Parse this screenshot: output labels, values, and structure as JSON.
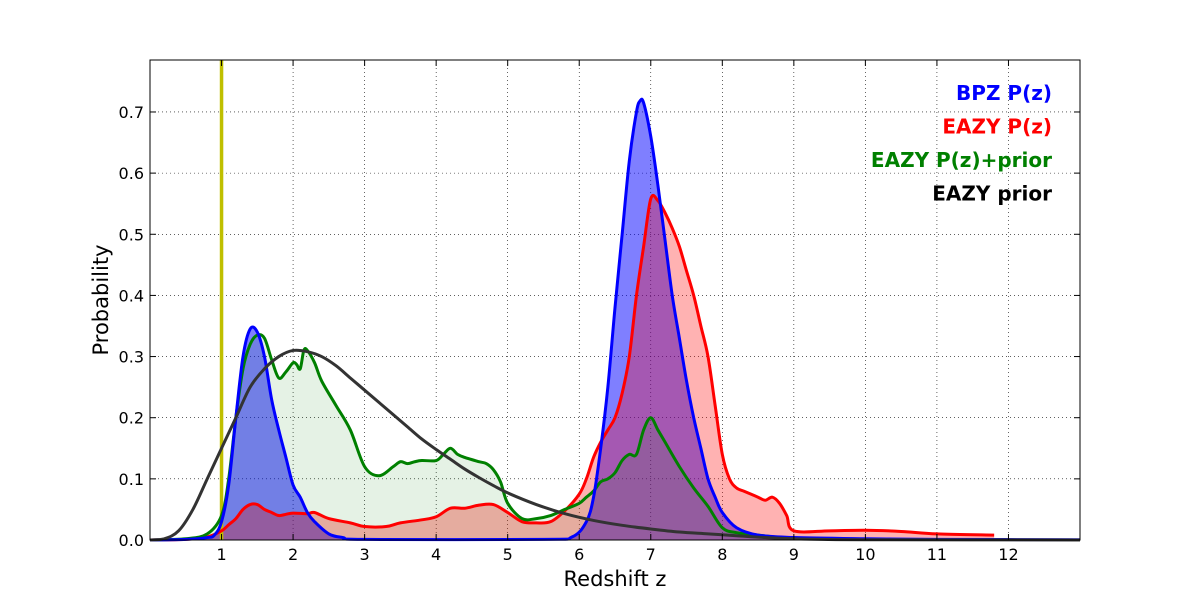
{
  "chart_data": {
    "type": "area",
    "title": "",
    "xlabel": "Redshift z",
    "ylabel": "Probability",
    "xlim": [
      0,
      13
    ],
    "ylim": [
      0,
      0.785
    ],
    "x_ticks": [
      "1",
      "2",
      "3",
      "4",
      "5",
      "6",
      "7",
      "8",
      "9",
      "10",
      "11",
      "12"
    ],
    "y_ticks": [
      "0.0",
      "0.1",
      "0.2",
      "0.3",
      "0.4",
      "0.5",
      "0.6",
      "0.7"
    ],
    "grid": true,
    "legend_position": "top-right",
    "reference_line": {
      "x": 1.0,
      "color": "#bfbf00"
    },
    "series": [
      {
        "name": "BPZ P(z)",
        "color": "#0000ff",
        "fill": "#0000ff",
        "fill_opacity": 0.5,
        "points": [
          [
            0,
            0
          ],
          [
            0.5,
            0.001
          ],
          [
            0.8,
            0.004
          ],
          [
            0.9,
            0.008
          ],
          [
            1.0,
            0.03
          ],
          [
            1.1,
            0.09
          ],
          [
            1.2,
            0.2
          ],
          [
            1.3,
            0.3
          ],
          [
            1.4,
            0.345
          ],
          [
            1.5,
            0.34
          ],
          [
            1.6,
            0.3
          ],
          [
            1.7,
            0.23
          ],
          [
            1.8,
            0.18
          ],
          [
            1.9,
            0.135
          ],
          [
            2.0,
            0.09
          ],
          [
            2.1,
            0.07
          ],
          [
            2.2,
            0.045
          ],
          [
            2.3,
            0.03
          ],
          [
            2.5,
            0.01
          ],
          [
            2.7,
            0.004
          ],
          [
            3.0,
            0.001
          ],
          [
            5.5,
            0.001
          ],
          [
            5.9,
            0.005
          ],
          [
            6.1,
            0.03
          ],
          [
            6.2,
            0.07
          ],
          [
            6.3,
            0.15
          ],
          [
            6.4,
            0.25
          ],
          [
            6.5,
            0.38
          ],
          [
            6.6,
            0.5
          ],
          [
            6.7,
            0.62
          ],
          [
            6.8,
            0.7
          ],
          [
            6.85,
            0.718
          ],
          [
            6.9,
            0.715
          ],
          [
            7.0,
            0.66
          ],
          [
            7.1,
            0.58
          ],
          [
            7.2,
            0.49
          ],
          [
            7.3,
            0.4
          ],
          [
            7.4,
            0.33
          ],
          [
            7.5,
            0.26
          ],
          [
            7.6,
            0.2
          ],
          [
            7.7,
            0.15
          ],
          [
            7.8,
            0.1
          ],
          [
            7.9,
            0.07
          ],
          [
            8.0,
            0.045
          ],
          [
            8.2,
            0.02
          ],
          [
            8.5,
            0.008
          ],
          [
            9.0,
            0.004
          ],
          [
            10,
            0.002
          ],
          [
            11,
            0.001
          ],
          [
            13,
            0.0005
          ]
        ]
      },
      {
        "name": "EAZY P(z)",
        "color": "#ff0000",
        "fill": "#ff0000",
        "fill_opacity": 0.3,
        "points": [
          [
            0,
            0
          ],
          [
            0.5,
            0.001
          ],
          [
            0.8,
            0.005
          ],
          [
            1.0,
            0.015
          ],
          [
            1.1,
            0.025
          ],
          [
            1.2,
            0.035
          ],
          [
            1.3,
            0.05
          ],
          [
            1.4,
            0.058
          ],
          [
            1.5,
            0.058
          ],
          [
            1.6,
            0.05
          ],
          [
            1.7,
            0.045
          ],
          [
            1.8,
            0.04
          ],
          [
            1.9,
            0.042
          ],
          [
            2.0,
            0.044
          ],
          [
            2.2,
            0.043
          ],
          [
            2.3,
            0.045
          ],
          [
            2.5,
            0.035
          ],
          [
            2.8,
            0.028
          ],
          [
            3.0,
            0.022
          ],
          [
            3.3,
            0.022
          ],
          [
            3.5,
            0.028
          ],
          [
            3.8,
            0.033
          ],
          [
            4.0,
            0.038
          ],
          [
            4.2,
            0.052
          ],
          [
            4.4,
            0.052
          ],
          [
            4.6,
            0.057
          ],
          [
            4.8,
            0.058
          ],
          [
            5.0,
            0.045
          ],
          [
            5.2,
            0.03
          ],
          [
            5.4,
            0.028
          ],
          [
            5.6,
            0.03
          ],
          [
            5.8,
            0.048
          ],
          [
            6.0,
            0.075
          ],
          [
            6.1,
            0.1
          ],
          [
            6.2,
            0.135
          ],
          [
            6.3,
            0.16
          ],
          [
            6.4,
            0.18
          ],
          [
            6.5,
            0.2
          ],
          [
            6.6,
            0.24
          ],
          [
            6.7,
            0.3
          ],
          [
            6.8,
            0.4
          ],
          [
            6.9,
            0.48
          ],
          [
            7.0,
            0.558
          ],
          [
            7.1,
            0.555
          ],
          [
            7.2,
            0.535
          ],
          [
            7.3,
            0.51
          ],
          [
            7.4,
            0.48
          ],
          [
            7.5,
            0.44
          ],
          [
            7.6,
            0.4
          ],
          [
            7.7,
            0.35
          ],
          [
            7.8,
            0.3
          ],
          [
            7.9,
            0.22
          ],
          [
            8.0,
            0.14
          ],
          [
            8.1,
            0.1
          ],
          [
            8.2,
            0.085
          ],
          [
            8.3,
            0.08
          ],
          [
            8.4,
            0.075
          ],
          [
            8.5,
            0.07
          ],
          [
            8.6,
            0.065
          ],
          [
            8.7,
            0.07
          ],
          [
            8.8,
            0.06
          ],
          [
            8.9,
            0.04
          ],
          [
            9.0,
            0.015
          ],
          [
            9.5,
            0.015
          ],
          [
            10.0,
            0.016
          ],
          [
            10.5,
            0.014
          ],
          [
            11.0,
            0.01
          ],
          [
            11.8,
            0.008
          ]
        ]
      },
      {
        "name": "EAZY P(z)+prior",
        "color": "#008000",
        "fill": "#008000",
        "fill_opacity": 0.1,
        "points": [
          [
            0,
            0
          ],
          [
            0.5,
            0.002
          ],
          [
            0.8,
            0.01
          ],
          [
            1.0,
            0.04
          ],
          [
            1.1,
            0.1
          ],
          [
            1.2,
            0.2
          ],
          [
            1.3,
            0.28
          ],
          [
            1.4,
            0.32
          ],
          [
            1.5,
            0.335
          ],
          [
            1.6,
            0.33
          ],
          [
            1.7,
            0.295
          ],
          [
            1.8,
            0.265
          ],
          [
            1.9,
            0.275
          ],
          [
            2.0,
            0.29
          ],
          [
            2.05,
            0.287
          ],
          [
            2.1,
            0.28
          ],
          [
            2.15,
            0.31
          ],
          [
            2.2,
            0.31
          ],
          [
            2.3,
            0.29
          ],
          [
            2.4,
            0.26
          ],
          [
            2.6,
            0.22
          ],
          [
            2.8,
            0.18
          ],
          [
            3.0,
            0.12
          ],
          [
            3.2,
            0.105
          ],
          [
            3.4,
            0.12
          ],
          [
            3.5,
            0.128
          ],
          [
            3.6,
            0.125
          ],
          [
            3.7,
            0.128
          ],
          [
            3.8,
            0.13
          ],
          [
            4.0,
            0.13
          ],
          [
            4.1,
            0.14
          ],
          [
            4.2,
            0.15
          ],
          [
            4.3,
            0.14
          ],
          [
            4.4,
            0.135
          ],
          [
            4.6,
            0.128
          ],
          [
            4.7,
            0.125
          ],
          [
            4.8,
            0.115
          ],
          [
            4.9,
            0.095
          ],
          [
            5.0,
            0.06
          ],
          [
            5.2,
            0.035
          ],
          [
            5.4,
            0.035
          ],
          [
            5.6,
            0.04
          ],
          [
            5.8,
            0.05
          ],
          [
            6.0,
            0.06
          ],
          [
            6.1,
            0.07
          ],
          [
            6.2,
            0.08
          ],
          [
            6.3,
            0.095
          ],
          [
            6.4,
            0.1
          ],
          [
            6.5,
            0.11
          ],
          [
            6.6,
            0.13
          ],
          [
            6.7,
            0.14
          ],
          [
            6.8,
            0.14
          ],
          [
            6.9,
            0.18
          ],
          [
            7.0,
            0.2
          ],
          [
            7.1,
            0.18
          ],
          [
            7.2,
            0.16
          ],
          [
            7.4,
            0.12
          ],
          [
            7.6,
            0.085
          ],
          [
            7.8,
            0.055
          ],
          [
            8.0,
            0.02
          ],
          [
            8.2,
            0.012
          ],
          [
            8.5,
            0.008
          ],
          [
            8.8,
            0.004
          ],
          [
            9.0,
            0.002
          ]
        ]
      },
      {
        "name": "EAZY prior",
        "color": "#333333",
        "fill": null,
        "points": [
          [
            0,
            0
          ],
          [
            0.2,
            0.002
          ],
          [
            0.4,
            0.015
          ],
          [
            0.6,
            0.05
          ],
          [
            0.8,
            0.1
          ],
          [
            1.0,
            0.15
          ],
          [
            1.2,
            0.2
          ],
          [
            1.4,
            0.25
          ],
          [
            1.6,
            0.28
          ],
          [
            1.8,
            0.3
          ],
          [
            2.0,
            0.31
          ],
          [
            2.2,
            0.308
          ],
          [
            2.4,
            0.3
          ],
          [
            2.6,
            0.285
          ],
          [
            2.8,
            0.265
          ],
          [
            3.0,
            0.245
          ],
          [
            3.2,
            0.225
          ],
          [
            3.4,
            0.205
          ],
          [
            3.6,
            0.185
          ],
          [
            3.8,
            0.165
          ],
          [
            4.0,
            0.148
          ],
          [
            4.2,
            0.132
          ],
          [
            4.4,
            0.116
          ],
          [
            4.6,
            0.102
          ],
          [
            4.8,
            0.089
          ],
          [
            5.0,
            0.077
          ],
          [
            5.4,
            0.058
          ],
          [
            5.8,
            0.043
          ],
          [
            6.2,
            0.032
          ],
          [
            6.6,
            0.024
          ],
          [
            7.0,
            0.018
          ],
          [
            7.4,
            0.013
          ],
          [
            7.8,
            0.01
          ],
          [
            8.2,
            0.007
          ],
          [
            8.6,
            0.004
          ],
          [
            9.0,
            0.002
          ],
          [
            9.4,
            0.001
          ],
          [
            10,
            0.0005
          ],
          [
            13,
            0
          ]
        ]
      }
    ]
  }
}
